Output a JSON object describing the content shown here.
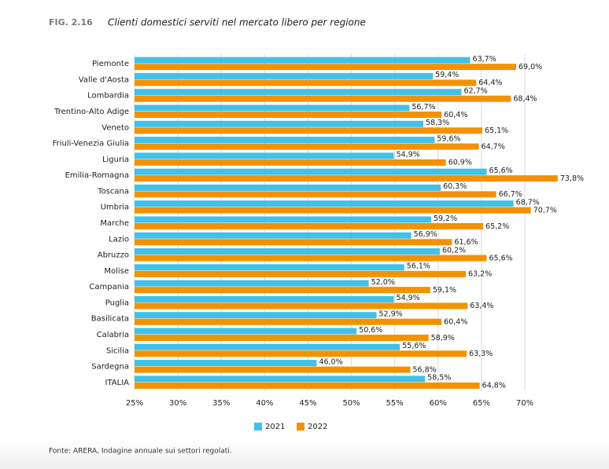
{
  "chart_data": {
    "type": "hbar",
    "fig": "FIG. 2.16",
    "title": "Clienti domestici serviti nel mercato libero per regione",
    "source": "Fonte: ARERA, Indagine annuale sui settori regolati.",
    "categories": [
      "Piemonte",
      "Valle d'Aosta",
      "Lombardia",
      "Trentino-Alto Adige",
      "Veneto",
      "Friuli-Venezia Giulia",
      "Liguria",
      "Emilia-Romagna",
      "Toscana",
      "Umbria",
      "Marche",
      "Lazio",
      "Abruzzo",
      "Molise",
      "Campania",
      "Puglia",
      "Basilicata",
      "Calabria",
      "Sicilia",
      "Sardegna",
      "ITALIA"
    ],
    "series": [
      {
        "name": "2021",
        "color": "#3fc1ea",
        "values": [
          63.7,
          59.4,
          62.7,
          56.7,
          58.3,
          59.6,
          54.9,
          65.6,
          60.3,
          68.7,
          59.2,
          56.9,
          60.2,
          56.1,
          52.0,
          54.9,
          52.9,
          50.6,
          55.6,
          46.0,
          58.5
        ],
        "value_labels": [
          "63,7%",
          "59,4%",
          "62,7%",
          "56,7%",
          "58,3%",
          "59,6%",
          "54,9%",
          "65,6%",
          "60,3%",
          "68,7%",
          "59,2%",
          "56,9%",
          "60,2%",
          "56,1%",
          "52,0%",
          "54,9%",
          "52,9%",
          "50,6%",
          "55,6%",
          "46,0%",
          "58,5%"
        ]
      },
      {
        "name": "2022",
        "color": "#f39200",
        "values": [
          69.0,
          64.4,
          68.4,
          60.4,
          65.1,
          64.7,
          60.9,
          73.8,
          66.7,
          70.7,
          65.2,
          61.6,
          65.6,
          63.2,
          59.1,
          63.4,
          60.4,
          58.9,
          63.3,
          56.8,
          64.8
        ],
        "value_labels": [
          "69,0%",
          "64,4%",
          "68,4%",
          "60,4%",
          "65,1%",
          "64,7%",
          "60,9%",
          "73,8%",
          "66,7%",
          "70,7%",
          "65,2%",
          "61,6%",
          "65,6%",
          "63,2%",
          "59,1%",
          "63,4%",
          "60,4%",
          "58,9%",
          "63,3%",
          "56,8%",
          "64,8%"
        ]
      }
    ],
    "xlim": [
      25,
      70
    ],
    "xticks": [
      {
        "value": 25,
        "label": "25%"
      },
      {
        "value": 30,
        "label": "30%"
      },
      {
        "value": 35,
        "label": "35%"
      },
      {
        "value": 40,
        "label": "40%"
      },
      {
        "value": 45,
        "label": "45%"
      },
      {
        "value": 50,
        "label": "50%"
      },
      {
        "value": 55,
        "label": "55%"
      },
      {
        "value": 60,
        "label": "60%"
      },
      {
        "value": 65,
        "label": "65%"
      },
      {
        "value": 70,
        "label": "70%"
      }
    ],
    "grid": true
  }
}
